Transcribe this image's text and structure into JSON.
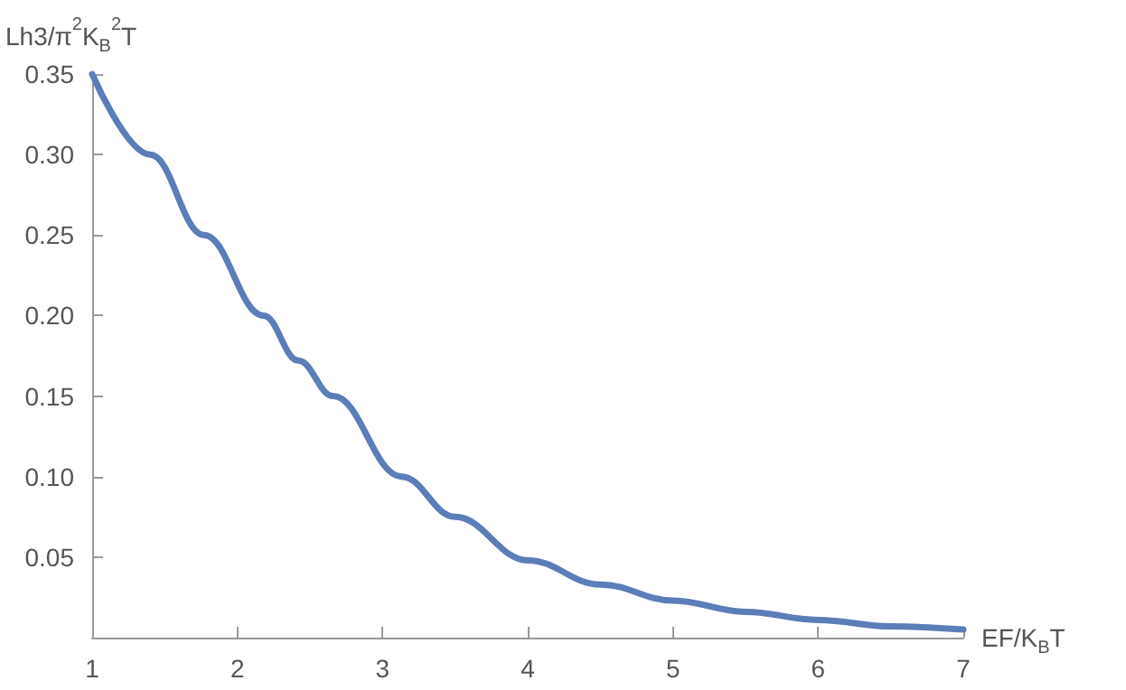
{
  "chart_data": {
    "type": "line",
    "xlabel": "EF/K$_{B}$T",
    "ylabel": "Lh3/π$^{2}$K$_{B}$$^{2}$T",
    "x": [
      1,
      1.4,
      1.77,
      2.18,
      2.42,
      2.66,
      3.13,
      3.5,
      4,
      4.5,
      5,
      5.5,
      6,
      6.5,
      7
    ],
    "series": [
      {
        "color": "#5b7db8",
        "values": [
          0.35,
          0.3,
          0.25,
          0.2,
          0.172,
          0.15,
          0.1,
          0.075,
          0.048,
          0.033,
          0.023,
          0.016,
          0.011,
          0.007,
          0.005
        ]
      }
    ],
    "xlim": [
      1,
      7
    ],
    "xticks": [
      1,
      2,
      3,
      4,
      5,
      6,
      7
    ],
    "ylim": [
      0,
      0.35
    ],
    "yticks": [
      {
        "value": 0,
        "label": null
      },
      0.05,
      {
        "value": 0.1,
        "label": "0.10"
      },
      0.15,
      {
        "value": 0.2,
        "label": "0.20"
      },
      0.25,
      {
        "value": 0.3,
        "label": "0.30"
      },
      0.35
    ],
    "grid": false,
    "marker": "none",
    "line_style": "solid"
  }
}
